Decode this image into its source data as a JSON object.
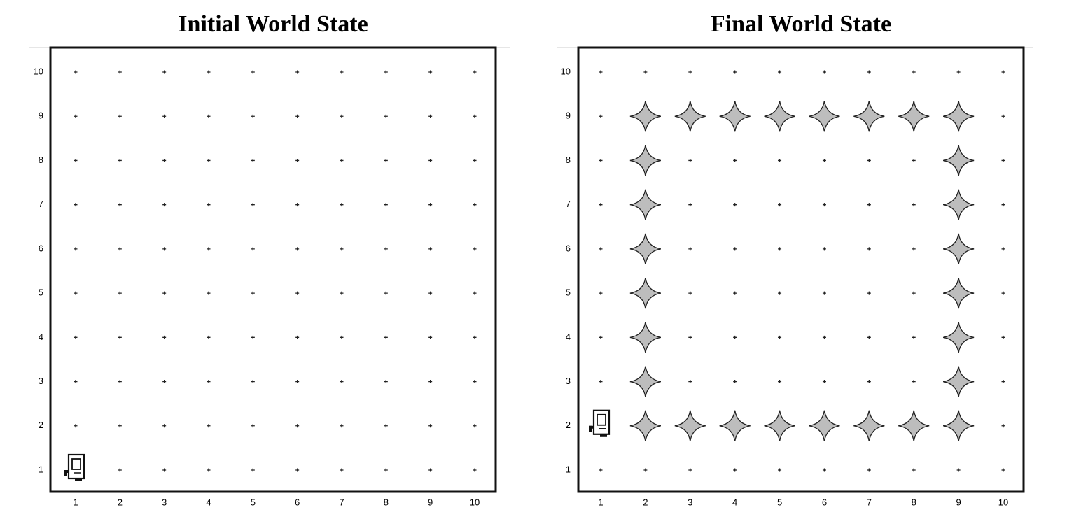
{
  "panels": [
    {
      "title": "Initial World State",
      "x_labels": [
        "1",
        "2",
        "3",
        "4",
        "5",
        "6",
        "7",
        "8",
        "9",
        "10"
      ],
      "y_labels": [
        "1",
        "2",
        "3",
        "4",
        "5",
        "6",
        "7",
        "8",
        "9",
        "10"
      ],
      "karel": [
        1,
        1
      ],
      "beepers": []
    },
    {
      "title": "Final World State",
      "x_labels": [
        "1",
        "2",
        "3",
        "4",
        "5",
        "6",
        "7",
        "8",
        "9",
        "10"
      ],
      "y_labels": [
        "1",
        "2",
        "3",
        "4",
        "5",
        "6",
        "7",
        "8",
        "9",
        "10"
      ],
      "karel": [
        1,
        2
      ],
      "beepers": [
        [
          2,
          9
        ],
        [
          3,
          9
        ],
        [
          4,
          9
        ],
        [
          5,
          9
        ],
        [
          6,
          9
        ],
        [
          7,
          9
        ],
        [
          8,
          9
        ],
        [
          9,
          9
        ],
        [
          2,
          8
        ],
        [
          9,
          8
        ],
        [
          2,
          7
        ],
        [
          9,
          7
        ],
        [
          2,
          6
        ],
        [
          9,
          6
        ],
        [
          2,
          5
        ],
        [
          9,
          5
        ],
        [
          2,
          4
        ],
        [
          9,
          4
        ],
        [
          2,
          3
        ],
        [
          9,
          3
        ],
        [
          2,
          2
        ],
        [
          3,
          2
        ],
        [
          4,
          2
        ],
        [
          5,
          2
        ],
        [
          6,
          2
        ],
        [
          7,
          2
        ],
        [
          8,
          2
        ],
        [
          9,
          2
        ]
      ]
    }
  ]
}
